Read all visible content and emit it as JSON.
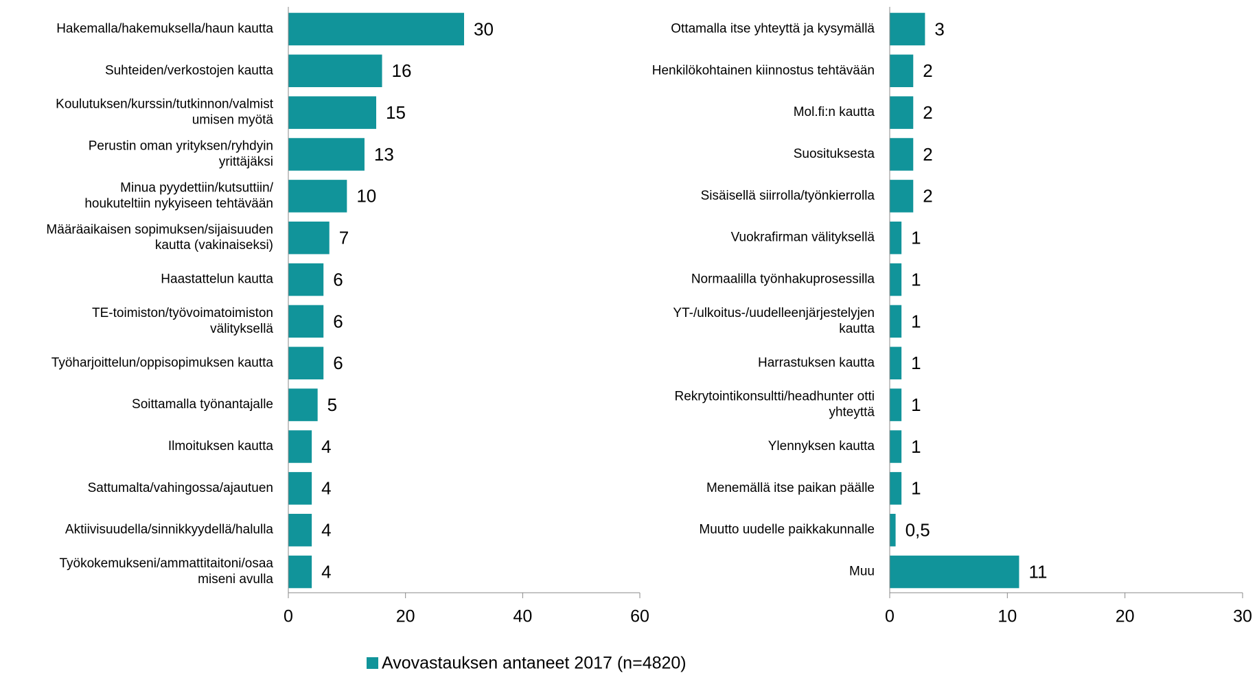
{
  "chart_data": [
    {
      "type": "barh",
      "categories": [
        "Hakemalla/hakemuksella/haun kautta",
        "Suhteiden/verkostojen kautta",
        "Koulutuksen/kurssin/tutkinnon/valmist\numisen myötä",
        "Perustin oman yrityksen/ryhdyin\nyrittäjäksi",
        "Minua pyydettiin/kutsuttiin/\nhoukuteltiin nykyiseen tehtävään",
        "Määräaikaisen sopimuksen/sijaisuuden\nkautta (vakinaiseksi)",
        "Haastattelun kautta",
        "TE-toimiston/työvoimatoimiston\nvälityksellä",
        "Työharjoittelun/oppisopimuksen kautta",
        "Soittamalla työnantajalle",
        "Ilmoituksen kautta",
        "Sattumalta/vahingossa/ajautuen",
        "Aktiivisuudella/sinnikkyydellä/halulla",
        "Työkokemukseni/ammattitaitoni/osaa\nmiseni avulla"
      ],
      "values": [
        30,
        16,
        15,
        13,
        10,
        7,
        6,
        6,
        6,
        5,
        4,
        4,
        4,
        4
      ],
      "color": "#11949a",
      "xlim": [
        0,
        60
      ],
      "xticks": [
        0,
        20,
        40,
        60
      ]
    },
    {
      "type": "barh",
      "categories": [
        "Ottamalla itse yhteyttä ja kysymällä",
        "Henkilökohtainen kiinnostus tehtävään",
        "Mol.fi:n kautta",
        "Suosituksesta",
        "Sisäisellä siirrolla/työnkierrolla",
        "Vuokrafirman välityksellä",
        "Normaalilla työnhakuprosessilla",
        "YT-/ulkoitus-/uudelleenjärjestelyjen\nkautta",
        "Harrastuksen kautta",
        "Rekrytointikonsultti/headhunter otti\nyhteyttä",
        "Ylennyksen kautta",
        "Menemällä itse paikan päälle",
        "Muutto uudelle paikkakunnalle",
        "Muu"
      ],
      "values": [
        3,
        2,
        2,
        2,
        2,
        1,
        1,
        1,
        1,
        1,
        1,
        1,
        0.5,
        11
      ],
      "value_labels": [
        "3",
        "2",
        "2",
        "2",
        "2",
        "1",
        "1",
        "1",
        "1",
        "1",
        "1",
        "1",
        "0,5",
        "11"
      ],
      "color": "#11949a",
      "xlim": [
        0,
        30
      ],
      "xticks": [
        0,
        10,
        20,
        30
      ]
    }
  ],
  "legend": {
    "label": "Avovastauksen antaneet 2017 (n=4820)",
    "color": "#11949a"
  }
}
